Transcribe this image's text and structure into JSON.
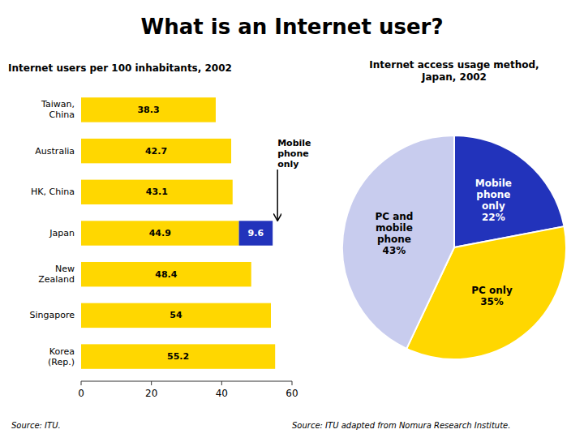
{
  "title": "What is an Internet user?",
  "chart_data": [
    {
      "type": "bar",
      "title": "Internet users per 100 inhabitants, 2002",
      "orientation": "horizontal",
      "stacked": true,
      "data_labels": true,
      "grid": false,
      "categories": [
        "Korea\n(Rep.)",
        "Singapore",
        "New\nZealand",
        "Japan",
        "HK, China",
        "Australia",
        "Taiwan,\nChina"
      ],
      "series": [
        {
          "color": "#FFD700",
          "values": [
            55.2,
            54.0,
            48.4,
            44.9,
            43.1,
            42.7,
            38.3
          ]
        },
        {
          "color": "#2233BB",
          "values": [
            null,
            null,
            null,
            9.6,
            null,
            null,
            null
          ]
        }
      ],
      "value_labels_series": null,
      "xlim": [
        0,
        60
      ],
      "xticks": [
        0,
        20,
        40,
        60
      ],
      "annotation": "Mobile\nphone\nonly",
      "source": "Source: ITU."
    },
    {
      "type": "pie",
      "title": "Internet access usage method,\nJapan, 2002",
      "categories": [
        "Mobile\nphone\nonly",
        "PC only",
        "PC and\nmobile\nphone"
      ],
      "values": [
        22,
        35,
        43
      ],
      "value_labels": [
        "22%",
        "35%",
        "43%"
      ],
      "colors": [
        "#2233BB",
        "#FFD700",
        "#C8CCEE"
      ],
      "data_labels": true,
      "source": "Source: ITU adapted from Nomura Research Institute."
    }
  ]
}
